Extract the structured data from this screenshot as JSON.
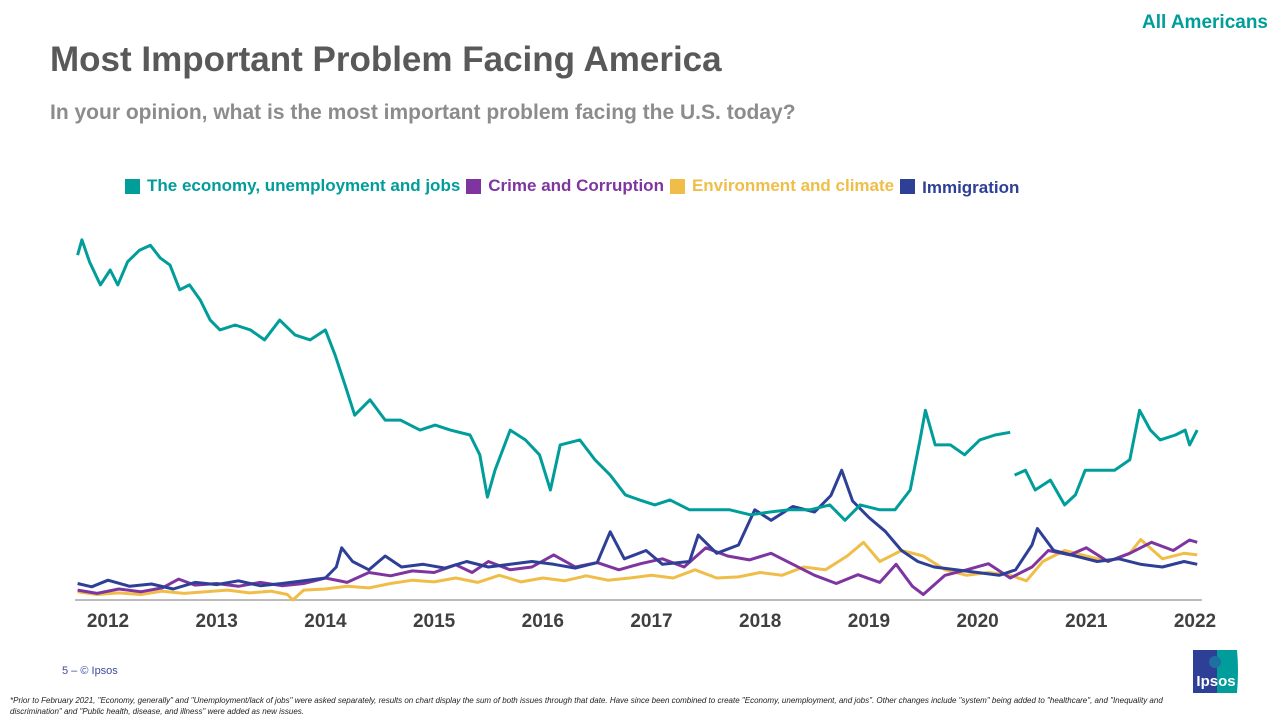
{
  "header": {
    "audience": "All Americans",
    "title": "Most Important Problem Facing America",
    "subtitle": "In your opinion, what is the most important problem facing the U.S. today?"
  },
  "footer": {
    "page": "5 –  © Ipsos",
    "footnote": "*Prior to February 2021, \"Economy, generally\" and \"Unemployment/lack of jobs\" were asked separately, results on chart display the sum of both issues through that date. Have since been combined to create \"Economy, unemployment, and jobs\". Other changes include \"system\" being added to \"healthcare\", and \"Inequality and discrimination\" and \"Public health, disease, and illness\" were added as new issues.",
    "logo_text": "Ipsos"
  },
  "chart_data": {
    "type": "line",
    "title": "",
    "xlabel": "",
    "ylabel": "",
    "x_ticks": [
      "2012",
      "2013",
      "2014",
      "2015",
      "2016",
      "2017",
      "2018",
      "2019",
      "2020",
      "2021",
      "2022"
    ],
    "xlim": [
      2011.7,
      2022.05
    ],
    "ylim": [
      0,
      65
    ],
    "y_axis_shown": false,
    "grid": false,
    "legend_position": "top",
    "series": [
      {
        "name": "The economy, unemployment and jobs",
        "color": "#009d9a",
        "points": [
          [
            2011.72,
            62.7
          ],
          [
            2011.76,
            65.5
          ],
          [
            2011.83,
            61.5
          ],
          [
            2011.93,
            57.3
          ],
          [
            2012.02,
            60.0
          ],
          [
            2012.09,
            57.3
          ],
          [
            2012.18,
            61.5
          ],
          [
            2012.29,
            63.6
          ],
          [
            2012.39,
            64.5
          ],
          [
            2012.48,
            62.2
          ],
          [
            2012.57,
            60.9
          ],
          [
            2012.66,
            56.4
          ],
          [
            2012.75,
            57.3
          ],
          [
            2012.85,
            54.5
          ],
          [
            2012.94,
            50.9
          ],
          [
            2013.03,
            49.1
          ],
          [
            2013.17,
            50.0
          ],
          [
            2013.31,
            49.1
          ],
          [
            2013.44,
            47.3
          ],
          [
            2013.58,
            50.9
          ],
          [
            2013.72,
            48.2
          ],
          [
            2013.86,
            47.3
          ],
          [
            2014.0,
            49.1
          ],
          [
            2014.09,
            44.5
          ],
          [
            2014.18,
            39.1
          ],
          [
            2014.27,
            33.6
          ],
          [
            2014.41,
            36.4
          ],
          [
            2014.55,
            32.7
          ],
          [
            2014.69,
            32.7
          ],
          [
            2014.87,
            30.9
          ],
          [
            2015.01,
            31.8
          ],
          [
            2015.15,
            30.9
          ],
          [
            2015.33,
            30.0
          ],
          [
            2015.42,
            26.4
          ],
          [
            2015.49,
            18.7
          ],
          [
            2015.56,
            23.6
          ],
          [
            2015.7,
            30.9
          ],
          [
            2015.84,
            29.1
          ],
          [
            2015.97,
            26.4
          ],
          [
            2016.07,
            20.0
          ],
          [
            2016.16,
            28.2
          ],
          [
            2016.34,
            29.1
          ],
          [
            2016.48,
            25.5
          ],
          [
            2016.62,
            22.7
          ],
          [
            2016.76,
            19.1
          ],
          [
            2016.89,
            18.2
          ],
          [
            2017.03,
            17.3
          ],
          [
            2017.17,
            18.2
          ],
          [
            2017.35,
            16.4
          ],
          [
            2017.54,
            16.4
          ],
          [
            2017.72,
            16.4
          ],
          [
            2017.91,
            15.5
          ],
          [
            2018.09,
            16.0
          ],
          [
            2018.27,
            16.4
          ],
          [
            2018.46,
            16.4
          ],
          [
            2018.64,
            17.3
          ],
          [
            2018.78,
            14.5
          ],
          [
            2018.92,
            17.3
          ],
          [
            2019.1,
            16.4
          ],
          [
            2019.24,
            16.4
          ],
          [
            2019.38,
            20.0
          ],
          [
            2019.47,
            29.1
          ],
          [
            2019.52,
            34.5
          ],
          [
            2019.61,
            28.2
          ],
          [
            2019.75,
            28.2
          ],
          [
            2019.88,
            26.4
          ],
          [
            2020.02,
            29.1
          ],
          [
            2020.16,
            30.0
          ],
          [
            2020.3,
            30.5
          ],
          null,
          [
            2020.34,
            22.7
          ],
          [
            2020.44,
            23.6
          ],
          [
            2020.53,
            20.0
          ],
          [
            2020.67,
            21.8
          ],
          [
            2020.8,
            17.3
          ],
          [
            2020.9,
            19.1
          ],
          [
            2020.99,
            23.6
          ],
          [
            2021.13,
            23.6
          ],
          [
            2021.26,
            23.6
          ],
          [
            2021.4,
            25.5
          ],
          [
            2021.49,
            34.5
          ],
          [
            2021.59,
            30.9
          ],
          [
            2021.68,
            29.1
          ],
          [
            2021.82,
            30.0
          ],
          [
            2021.91,
            30.9
          ],
          [
            2021.95,
            28.2
          ],
          [
            2022.02,
            30.9
          ]
        ]
      },
      {
        "name": "Crime and Corruption",
        "color": "#7f35a0",
        "points": [
          [
            2011.72,
            1.8
          ],
          [
            2011.9,
            1.2
          ],
          [
            2012.1,
            2.0
          ],
          [
            2012.3,
            1.5
          ],
          [
            2012.5,
            2.2
          ],
          [
            2012.65,
            3.8
          ],
          [
            2012.8,
            2.7
          ],
          [
            2013.0,
            3.0
          ],
          [
            2013.2,
            2.5
          ],
          [
            2013.4,
            3.2
          ],
          [
            2013.6,
            2.6
          ],
          [
            2013.8,
            3.0
          ],
          [
            2014.0,
            4.0
          ],
          [
            2014.2,
            3.2
          ],
          [
            2014.4,
            5.0
          ],
          [
            2014.6,
            4.4
          ],
          [
            2014.8,
            5.3
          ],
          [
            2015.0,
            5.0
          ],
          [
            2015.2,
            6.4
          ],
          [
            2015.35,
            5.0
          ],
          [
            2015.5,
            7.0
          ],
          [
            2015.7,
            5.5
          ],
          [
            2015.9,
            6.0
          ],
          [
            2016.1,
            8.2
          ],
          [
            2016.3,
            6.0
          ],
          [
            2016.5,
            6.8
          ],
          [
            2016.7,
            5.5
          ],
          [
            2016.9,
            6.6
          ],
          [
            2017.1,
            7.5
          ],
          [
            2017.3,
            6.0
          ],
          [
            2017.5,
            9.5
          ],
          [
            2017.7,
            8.0
          ],
          [
            2017.9,
            7.3
          ],
          [
            2018.1,
            8.5
          ],
          [
            2018.3,
            6.5
          ],
          [
            2018.5,
            4.5
          ],
          [
            2018.7,
            3.0
          ],
          [
            2018.9,
            4.6
          ],
          [
            2019.1,
            3.2
          ],
          [
            2019.25,
            6.5
          ],
          [
            2019.4,
            2.5
          ],
          [
            2019.5,
            1.0
          ],
          [
            2019.7,
            4.5
          ],
          [
            2019.9,
            5.5
          ],
          [
            2020.1,
            6.6
          ],
          [
            2020.3,
            4.0
          ],
          [
            2020.5,
            6.0
          ],
          [
            2020.65,
            9.0
          ],
          [
            2020.85,
            8.2
          ],
          [
            2021.0,
            9.5
          ],
          [
            2021.2,
            7.0
          ],
          [
            2021.4,
            8.5
          ],
          [
            2021.6,
            10.5
          ],
          [
            2021.8,
            9.0
          ],
          [
            2021.95,
            10.9
          ],
          [
            2022.02,
            10.5
          ]
        ]
      },
      {
        "name": "Environment and climate",
        "color": "#f0be48",
        "points": [
          [
            2011.72,
            1.5
          ],
          [
            2011.9,
            1.0
          ],
          [
            2012.1,
            1.3
          ],
          [
            2012.3,
            1.0
          ],
          [
            2012.5,
            1.6
          ],
          [
            2012.7,
            1.2
          ],
          [
            2012.9,
            1.5
          ],
          [
            2013.1,
            1.8
          ],
          [
            2013.3,
            1.3
          ],
          [
            2013.5,
            1.6
          ],
          [
            2013.65,
            1.0
          ],
          [
            2013.7,
            0.0
          ],
          [
            2013.8,
            1.8
          ],
          [
            2014.0,
            2.0
          ],
          [
            2014.2,
            2.5
          ],
          [
            2014.4,
            2.2
          ],
          [
            2014.6,
            3.0
          ],
          [
            2014.8,
            3.6
          ],
          [
            2015.0,
            3.3
          ],
          [
            2015.2,
            4.0
          ],
          [
            2015.4,
            3.2
          ],
          [
            2015.6,
            4.5
          ],
          [
            2015.8,
            3.3
          ],
          [
            2016.0,
            4.0
          ],
          [
            2016.2,
            3.5
          ],
          [
            2016.4,
            4.4
          ],
          [
            2016.6,
            3.6
          ],
          [
            2016.8,
            4.0
          ],
          [
            2017.0,
            4.5
          ],
          [
            2017.2,
            4.0
          ],
          [
            2017.4,
            5.5
          ],
          [
            2017.6,
            4.0
          ],
          [
            2017.8,
            4.2
          ],
          [
            2018.0,
            5.0
          ],
          [
            2018.2,
            4.5
          ],
          [
            2018.4,
            6.0
          ],
          [
            2018.6,
            5.5
          ],
          [
            2018.8,
            8.0
          ],
          [
            2018.95,
            10.5
          ],
          [
            2019.1,
            7.0
          ],
          [
            2019.3,
            9.0
          ],
          [
            2019.5,
            8.0
          ],
          [
            2019.7,
            5.5
          ],
          [
            2019.9,
            4.5
          ],
          [
            2020.1,
            5.0
          ],
          [
            2020.3,
            4.5
          ],
          [
            2020.45,
            3.5
          ],
          [
            2020.6,
            7.0
          ],
          [
            2020.8,
            9.0
          ],
          [
            2021.0,
            8.0
          ],
          [
            2021.2,
            7.0
          ],
          [
            2021.4,
            8.5
          ],
          [
            2021.5,
            11.0
          ],
          [
            2021.7,
            7.5
          ],
          [
            2021.9,
            8.5
          ],
          [
            2022.02,
            8.2
          ]
        ]
      },
      {
        "name": "Immigration",
        "color": "#2e3f96",
        "points": [
          [
            2011.72,
            3.0
          ],
          [
            2011.85,
            2.4
          ],
          [
            2012.0,
            3.6
          ],
          [
            2012.2,
            2.5
          ],
          [
            2012.4,
            2.9
          ],
          [
            2012.6,
            2.0
          ],
          [
            2012.8,
            3.2
          ],
          [
            2013.0,
            2.8
          ],
          [
            2013.2,
            3.5
          ],
          [
            2013.4,
            2.6
          ],
          [
            2013.6,
            3.0
          ],
          [
            2013.8,
            3.5
          ],
          [
            2014.0,
            4.0
          ],
          [
            2014.1,
            6.0
          ],
          [
            2014.15,
            9.5
          ],
          [
            2014.25,
            7.0
          ],
          [
            2014.4,
            5.5
          ],
          [
            2014.55,
            8.0
          ],
          [
            2014.7,
            6.0
          ],
          [
            2014.9,
            6.5
          ],
          [
            2015.1,
            5.8
          ],
          [
            2015.3,
            7.0
          ],
          [
            2015.5,
            6.0
          ],
          [
            2015.7,
            6.5
          ],
          [
            2015.9,
            7.0
          ],
          [
            2016.1,
            6.5
          ],
          [
            2016.3,
            5.8
          ],
          [
            2016.5,
            6.8
          ],
          [
            2016.62,
            12.4
          ],
          [
            2016.75,
            7.5
          ],
          [
            2016.95,
            9.0
          ],
          [
            2017.1,
            6.5
          ],
          [
            2017.35,
            7.0
          ],
          [
            2017.43,
            11.8
          ],
          [
            2017.6,
            8.5
          ],
          [
            2017.8,
            10.0
          ],
          [
            2017.95,
            16.4
          ],
          [
            2018.1,
            14.5
          ],
          [
            2018.3,
            17.0
          ],
          [
            2018.5,
            16.0
          ],
          [
            2018.65,
            19.0
          ],
          [
            2018.75,
            23.6
          ],
          [
            2018.85,
            18.0
          ],
          [
            2019.0,
            15.0
          ],
          [
            2019.15,
            12.5
          ],
          [
            2019.3,
            9.0
          ],
          [
            2019.45,
            7.0
          ],
          [
            2019.6,
            6.0
          ],
          [
            2019.8,
            5.5
          ],
          [
            2020.0,
            5.0
          ],
          [
            2020.2,
            4.5
          ],
          [
            2020.35,
            5.5
          ],
          [
            2020.5,
            10.0
          ],
          [
            2020.55,
            13.0
          ],
          [
            2020.7,
            9.0
          ],
          [
            2020.9,
            8.0
          ],
          [
            2021.1,
            7.0
          ],
          [
            2021.3,
            7.5
          ],
          [
            2021.5,
            6.5
          ],
          [
            2021.7,
            6.0
          ],
          [
            2021.9,
            7.0
          ],
          [
            2022.02,
            6.5
          ]
        ]
      }
    ]
  }
}
